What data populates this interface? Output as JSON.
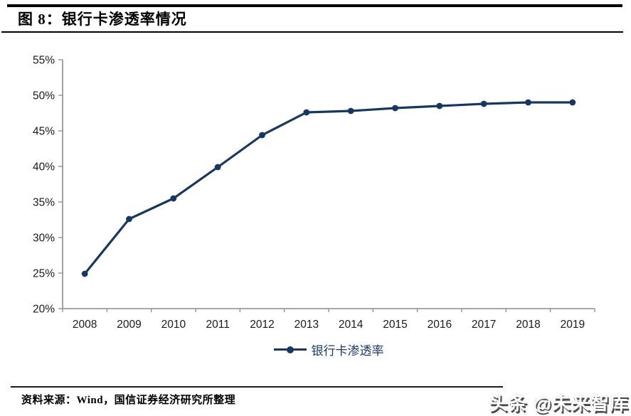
{
  "header": {
    "title": "图 8：银行卡渗透率情况"
  },
  "chart_data": {
    "type": "line",
    "title": "银行卡渗透率情况",
    "categories": [
      "2008",
      "2009",
      "2010",
      "2011",
      "2012",
      "2013",
      "2014",
      "2015",
      "2016",
      "2017",
      "2018",
      "2019"
    ],
    "series": [
      {
        "name": "银行卡渗透率",
        "values": [
          24.9,
          32.6,
          35.5,
          39.9,
          44.4,
          47.6,
          47.8,
          48.2,
          48.5,
          48.8,
          49.0,
          49.0
        ]
      }
    ],
    "xlabel": "",
    "ylabel": "",
    "ylim": [
      20,
      55
    ],
    "y_tick_step": 5,
    "y_tick_labels": [
      "20%",
      "25%",
      "30%",
      "35%",
      "40%",
      "45%",
      "50%",
      "55%"
    ],
    "grid": false,
    "legend_position": "bottom",
    "marker": "circle"
  },
  "legend": {
    "label": "银行卡渗透率"
  },
  "footer": {
    "source": "资料来源：Wind，国信证券经济研究所整理",
    "watermark": "头条 @未来智库"
  },
  "colors": {
    "line": "#17375e",
    "legend_text": "#1f3864",
    "axis": "#8c8c8c",
    "tick_label": "#1a1a1a",
    "title_text": "#000000",
    "watermark_fill": "#ffffff",
    "watermark_shadow": "#4a4a4a"
  }
}
